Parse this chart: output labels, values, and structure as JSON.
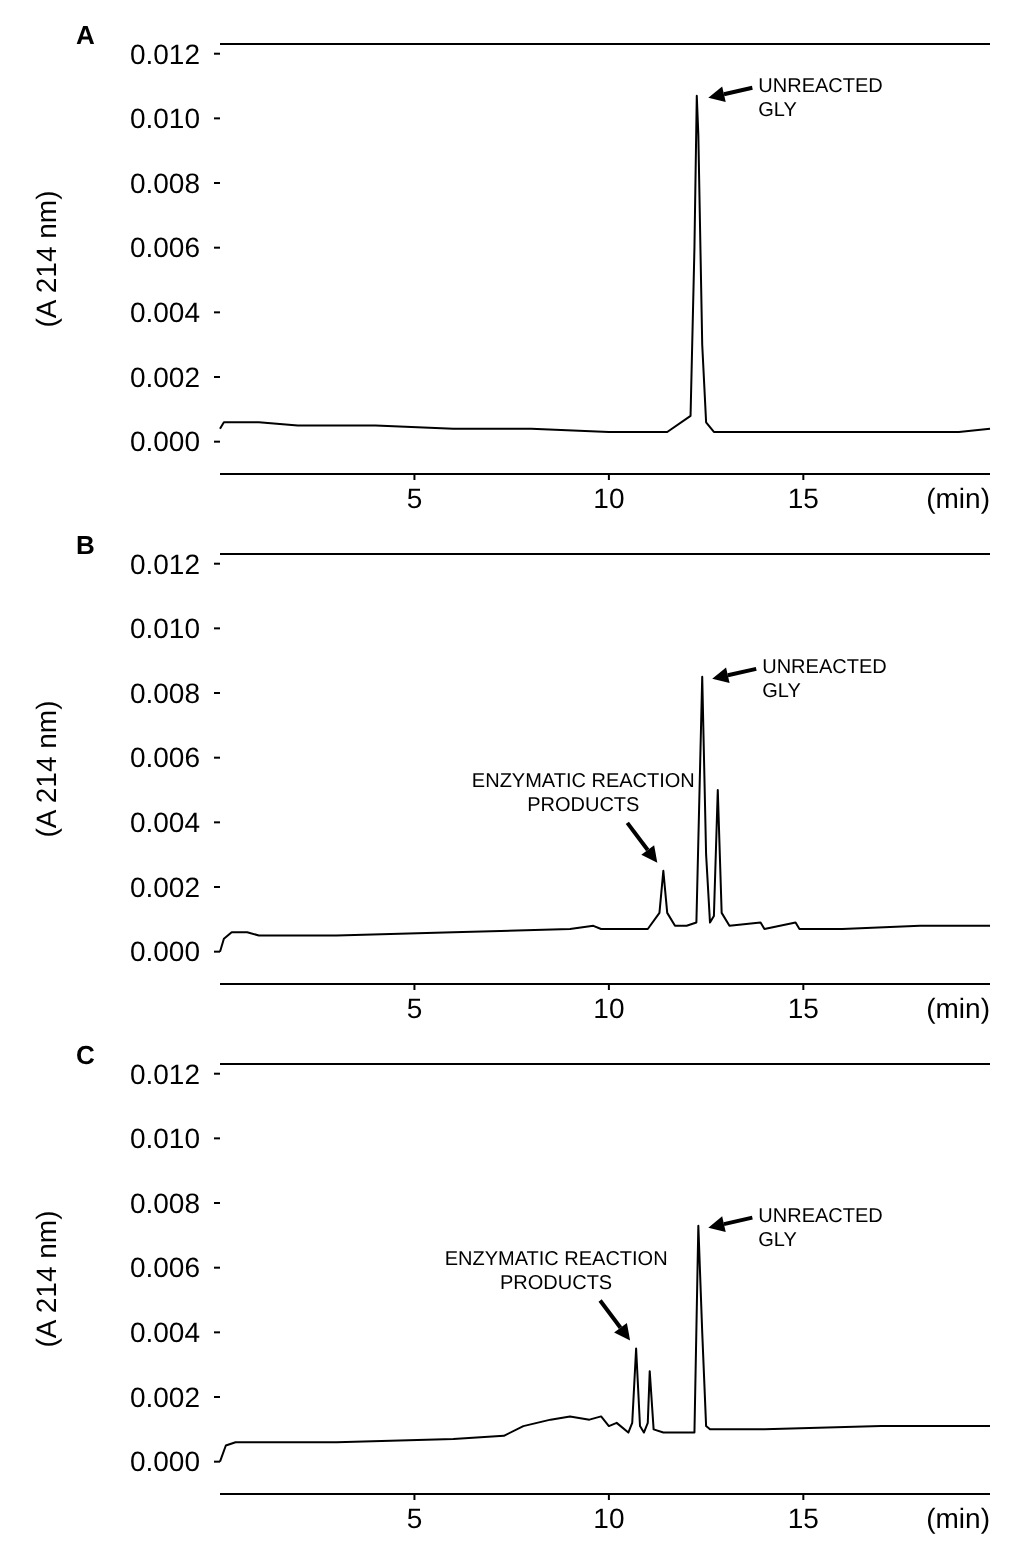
{
  "chart_data": [
    {
      "type": "line",
      "title": "A",
      "xlabel": "(min)",
      "ylabel": "(A 214 nm)",
      "xlim": [
        0,
        19.8
      ],
      "xticks": [
        5,
        10,
        15
      ],
      "ylim": [
        -0.001,
        0.0123
      ],
      "yticks": [
        {
          "value": 0,
          "label": "0.000"
        },
        {
          "value": 0.002,
          "label": "0.002"
        },
        {
          "value": 0.004,
          "label": "0.004"
        },
        {
          "value": 0.006,
          "label": "0.006"
        },
        {
          "value": 0.008,
          "label": "0.008"
        },
        {
          "value": 0.01,
          "label": "0.010"
        },
        {
          "value": 0.012,
          "label": "0.012"
        }
      ],
      "annotations": [
        {
          "text": "UNREACTED\nGLY",
          "x": 12.3,
          "y": 0.0107
        }
      ],
      "series": [
        {
          "color": "#000000",
          "x": [
            0,
            0.1,
            0.3,
            1,
            2,
            4,
            6,
            8,
            10,
            11.5,
            12.1,
            12.2,
            12.26,
            12.3,
            12.4,
            12.5,
            12.7,
            13,
            15,
            17,
            19,
            19.8
          ],
          "values": [
            0.0004,
            0.0006,
            0.0006,
            0.0006,
            0.0005,
            0.0005,
            0.0004,
            0.0004,
            0.0003,
            0.0003,
            0.0008,
            0.006,
            0.0107,
            0.0095,
            0.003,
            0.0006,
            0.0003,
            0.0003,
            0.0003,
            0.0003,
            0.0003,
            0.0004
          ]
        }
      ]
    },
    {
      "type": "line",
      "title": "B",
      "xlabel": "(min)",
      "ylabel": "(A 214 nm)",
      "xlim": [
        0,
        19.8
      ],
      "xticks": [
        5,
        10,
        15
      ],
      "ylim": [
        -0.001,
        0.0123
      ],
      "yticks": [
        {
          "value": 0,
          "label": "0.000"
        },
        {
          "value": 0.002,
          "label": "0.002"
        },
        {
          "value": 0.004,
          "label": "0.004"
        },
        {
          "value": 0.006,
          "label": "0.006"
        },
        {
          "value": 0.008,
          "label": "0.008"
        },
        {
          "value": 0.01,
          "label": "0.010"
        },
        {
          "value": 0.012,
          "label": "0.012"
        }
      ],
      "annotations": [
        {
          "text": "UNREACTED\nGLY",
          "x": 12.4,
          "y": 0.0085
        },
        {
          "text": "ENZYMATIC REACTION\nPRODUCTS",
          "x": 11.4,
          "y": 0.0025
        }
      ],
      "series": [
        {
          "color": "#000000",
          "x": [
            0,
            0.1,
            0.3,
            0.7,
            1,
            3,
            6,
            9,
            9.6,
            9.8,
            11,
            11.3,
            11.4,
            11.5,
            11.7,
            12,
            12.25,
            12.4,
            12.5,
            12.6,
            12.7,
            12.8,
            12.9,
            13.1,
            13.9,
            14,
            14.8,
            14.9,
            16,
            18,
            19.8
          ],
          "values": [
            0,
            0.0004,
            0.0006,
            0.0006,
            0.0005,
            0.0005,
            0.0006,
            0.0007,
            0.0008,
            0.0007,
            0.0007,
            0.0012,
            0.0025,
            0.0012,
            0.0008,
            0.0008,
            0.0009,
            0.0085,
            0.003,
            0.0009,
            0.0011,
            0.005,
            0.0012,
            0.0008,
            0.0009,
            0.0007,
            0.0009,
            0.0007,
            0.0007,
            0.0008,
            0.0008
          ]
        }
      ]
    },
    {
      "type": "line",
      "title": "C",
      "xlabel": "(min)",
      "ylabel": "(A 214 nm)",
      "xlim": [
        0,
        19.8
      ],
      "xticks": [
        5,
        10,
        15
      ],
      "ylim": [
        -0.001,
        0.0123
      ],
      "yticks": [
        {
          "value": 0,
          "label": "0.000"
        },
        {
          "value": 0.002,
          "label": "0.002"
        },
        {
          "value": 0.004,
          "label": "0.004"
        },
        {
          "value": 0.006,
          "label": "0.006"
        },
        {
          "value": 0.008,
          "label": "0.008"
        },
        {
          "value": 0.01,
          "label": "0.010"
        },
        {
          "value": 0.012,
          "label": "0.012"
        }
      ],
      "annotations": [
        {
          "text": "UNREACTED\nGLY",
          "x": 12.3,
          "y": 0.0073
        },
        {
          "text": "ENZYMATIC REACTION\nPRODUCTS",
          "x": 10.7,
          "y": 0.0035
        }
      ],
      "series": [
        {
          "color": "#000000",
          "x": [
            0,
            0.15,
            0.4,
            1,
            3,
            6,
            7.3,
            7.8,
            8.5,
            9,
            9.5,
            9.8,
            10,
            10.2,
            10.5,
            10.6,
            10.7,
            10.8,
            10.9,
            11,
            11.05,
            11.15,
            11.4,
            12,
            12.2,
            12.3,
            12.4,
            12.5,
            12.6,
            14,
            17,
            19.8
          ],
          "values": [
            0,
            0.0005,
            0.0006,
            0.0006,
            0.0006,
            0.0007,
            0.0008,
            0.0011,
            0.0013,
            0.0014,
            0.0013,
            0.0014,
            0.0011,
            0.0012,
            0.0009,
            0.0012,
            0.0035,
            0.0011,
            0.0009,
            0.0012,
            0.0028,
            0.001,
            0.0009,
            0.0009,
            0.0009,
            0.0073,
            0.004,
            0.0011,
            0.001,
            0.001,
            0.0011,
            0.0011
          ]
        }
      ]
    }
  ]
}
